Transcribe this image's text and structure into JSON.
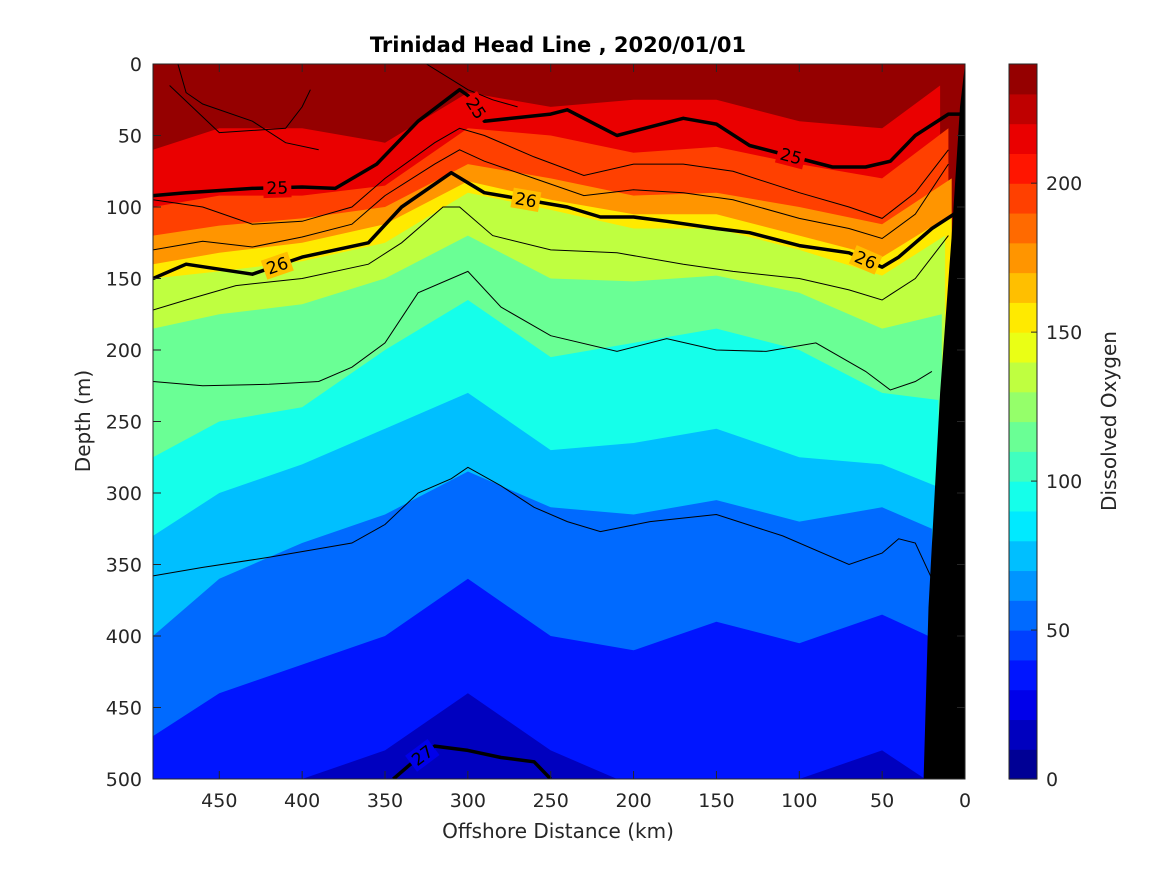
{
  "chart_data": {
    "type": "contour",
    "title": "Trinidad Head Line , 2020/01/01",
    "xlabel": "Offshore Distance (km)",
    "ylabel": "Depth (m)",
    "colorbar_label": "Dissolved Oxygen",
    "xlim": [
      490,
      0
    ],
    "ylim": [
      0,
      500
    ],
    "clim": [
      0,
      240
    ],
    "x_ticks": [
      450,
      400,
      350,
      300,
      250,
      200,
      150,
      100,
      50,
      0
    ],
    "y_ticks": [
      0,
      50,
      100,
      150,
      200,
      250,
      300,
      350,
      400,
      450,
      500
    ],
    "colorbar_ticks": [
      0,
      50,
      100,
      150,
      200
    ],
    "contour_levels_oxygen_step": 10,
    "oxygen_isopleth_depths": [
      {
        "oxygen": 220,
        "x": [
          490,
          450,
          400,
          350,
          300,
          250,
          200,
          150,
          100,
          50,
          15
        ],
        "depth": [
          60,
          45,
          45,
          55,
          20,
          30,
          25,
          25,
          40,
          45,
          15
        ]
      },
      {
        "oxygen": 200,
        "x": [
          490,
          450,
          400,
          350,
          300,
          250,
          200,
          150,
          100,
          50,
          10
        ],
        "depth": [
          100,
          92,
          92,
          85,
          45,
          50,
          62,
          58,
          70,
          80,
          45
        ]
      },
      {
        "oxygen": 180,
        "x": [
          490,
          450,
          400,
          350,
          300,
          250,
          200,
          150,
          100,
          50,
          8
        ],
        "depth": [
          120,
          113,
          108,
          100,
          70,
          80,
          92,
          90,
          100,
          112,
          80
        ]
      },
      {
        "oxygen": 160,
        "x": [
          490,
          450,
          400,
          350,
          300,
          250,
          200,
          150,
          100,
          50,
          8
        ],
        "depth": [
          140,
          132,
          125,
          112,
          82,
          95,
          105,
          105,
          120,
          135,
          105
        ]
      },
      {
        "oxygen": 140,
        "x": [
          490,
          450,
          400,
          350,
          300,
          250,
          200,
          150,
          100,
          50,
          12
        ],
        "depth": [
          150,
          145,
          138,
          125,
          90,
          102,
          115,
          115,
          130,
          148,
          120
        ]
      },
      {
        "oxygen": 120,
        "x": [
          490,
          450,
          400,
          350,
          300,
          250,
          200,
          150,
          100,
          50,
          14
        ],
        "depth": [
          185,
          175,
          168,
          150,
          120,
          150,
          152,
          148,
          160,
          185,
          175
        ]
      },
      {
        "oxygen": 100,
        "x": [
          490,
          450,
          400,
          350,
          300,
          250,
          200,
          150,
          100,
          50,
          16
        ],
        "depth": [
          275,
          250,
          240,
          200,
          165,
          205,
          195,
          185,
          200,
          230,
          235
        ]
      },
      {
        "oxygen": 80,
        "x": [
          490,
          450,
          400,
          350,
          300,
          250,
          200,
          150,
          100,
          50,
          18
        ],
        "depth": [
          330,
          300,
          280,
          255,
          230,
          270,
          265,
          255,
          275,
          280,
          295
        ]
      },
      {
        "oxygen": 60,
        "x": [
          490,
          450,
          400,
          350,
          300,
          250,
          200,
          150,
          100,
          50,
          20
        ],
        "depth": [
          400,
          360,
          335,
          315,
          285,
          310,
          315,
          305,
          320,
          310,
          325
        ]
      },
      {
        "oxygen": 40,
        "x": [
          490,
          450,
          400,
          350,
          300,
          250,
          200,
          150,
          100,
          50,
          22
        ],
        "depth": [
          470,
          440,
          420,
          400,
          360,
          400,
          410,
          390,
          405,
          385,
          400
        ]
      },
      {
        "oxygen": 20,
        "x": [
          490,
          450,
          400,
          350,
          300,
          250,
          200,
          150,
          100,
          50,
          24
        ],
        "depth": [
          505,
          505,
          500,
          480,
          440,
          480,
          505,
          505,
          500,
          480,
          500
        ]
      }
    ],
    "density_contours": [
      {
        "label": "25",
        "x": [
          490,
          470,
          430,
          400,
          380,
          355,
          330,
          305,
          300,
          290,
          250,
          240,
          210,
          170,
          150,
          130,
          80,
          60,
          45,
          30,
          10,
          0
        ],
        "depth": [
          92,
          90,
          87,
          86,
          87,
          70,
          40,
          18,
          22,
          40,
          35,
          32,
          50,
          38,
          42,
          57,
          72,
          72,
          68,
          50,
          35,
          35
        ]
      },
      {
        "label": "26",
        "x": [
          490,
          470,
          430,
          400,
          360,
          340,
          310,
          290,
          240,
          220,
          200,
          180,
          150,
          130,
          100,
          70,
          50,
          40,
          20,
          0
        ],
        "depth": [
          150,
          140,
          147,
          135,
          125,
          100,
          76,
          90,
          100,
          107,
          107,
          110,
          115,
          118,
          127,
          132,
          142,
          135,
          115,
          100
        ]
      },
      {
        "label": "27",
        "x": [
          345,
          335,
          320,
          300,
          280,
          260,
          250
        ],
        "depth": [
          500,
          490,
          477,
          480,
          485,
          488,
          500
        ]
      }
    ],
    "thin_contours": [
      {
        "x": [
          490,
          460,
          430,
          400,
          370,
          350,
          320,
          305,
          290,
          260,
          230,
          200,
          170,
          140,
          100,
          70,
          50,
          30,
          10
        ],
        "depth": [
          95,
          100,
          112,
          110,
          100,
          80,
          55,
          45,
          50,
          65,
          78,
          70,
          70,
          75,
          90,
          100,
          108,
          90,
          60
        ]
      },
      {
        "x": [
          490,
          460,
          430,
          400,
          370,
          350,
          320,
          305,
          290,
          260,
          230,
          200,
          170,
          140,
          100,
          70,
          50,
          30,
          10
        ],
        "depth": [
          130,
          124,
          128,
          121,
          112,
          92,
          70,
          60,
          68,
          80,
          92,
          88,
          90,
          95,
          108,
          115,
          122,
          105,
          70
        ]
      },
      {
        "x": [
          490,
          470,
          440,
          400,
          360,
          340,
          315,
          305,
          285,
          250,
          210,
          170,
          140,
          100,
          70,
          50,
          30,
          10
        ],
        "depth": [
          172,
          165,
          155,
          150,
          140,
          125,
          100,
          100,
          120,
          130,
          132,
          140,
          145,
          150,
          158,
          165,
          150,
          120
        ]
      },
      {
        "x": [
          490,
          460,
          420,
          390,
          370,
          350,
          330,
          310,
          300,
          280,
          250,
          210,
          180,
          150,
          120,
          90,
          60,
          45,
          30,
          20
        ],
        "depth": [
          222,
          225,
          224,
          222,
          212,
          195,
          160,
          150,
          145,
          170,
          190,
          201,
          192,
          200,
          201,
          195,
          215,
          228,
          222,
          215
        ]
      },
      {
        "x": [
          490,
          460,
          420,
          390,
          370,
          350,
          330,
          310,
          300,
          280,
          260,
          240,
          220,
          190,
          150,
          110,
          70,
          50,
          40,
          30,
          20
        ],
        "depth": [
          358,
          352,
          345,
          339,
          335,
          322,
          300,
          290,
          282,
          295,
          310,
          320,
          327,
          320,
          315,
          330,
          350,
          342,
          332,
          335,
          360
        ]
      },
      {
        "x": [
          475,
          470,
          460,
          430,
          410,
          390
        ],
        "depth": [
          0,
          20,
          28,
          40,
          55,
          60
        ]
      },
      {
        "x": [
          480,
          450,
          410,
          400,
          395
        ],
        "depth": [
          15,
          48,
          45,
          30,
          18
        ]
      },
      {
        "x": [
          325,
          300,
          285,
          270
        ],
        "depth": [
          0,
          18,
          25,
          30
        ]
      }
    ],
    "bathymetry_polygon": {
      "x": [
        0,
        0,
        25,
        22,
        15,
        8,
        3
      ],
      "depth": [
        0,
        500,
        500,
        380,
        230,
        120,
        30
      ]
    }
  }
}
